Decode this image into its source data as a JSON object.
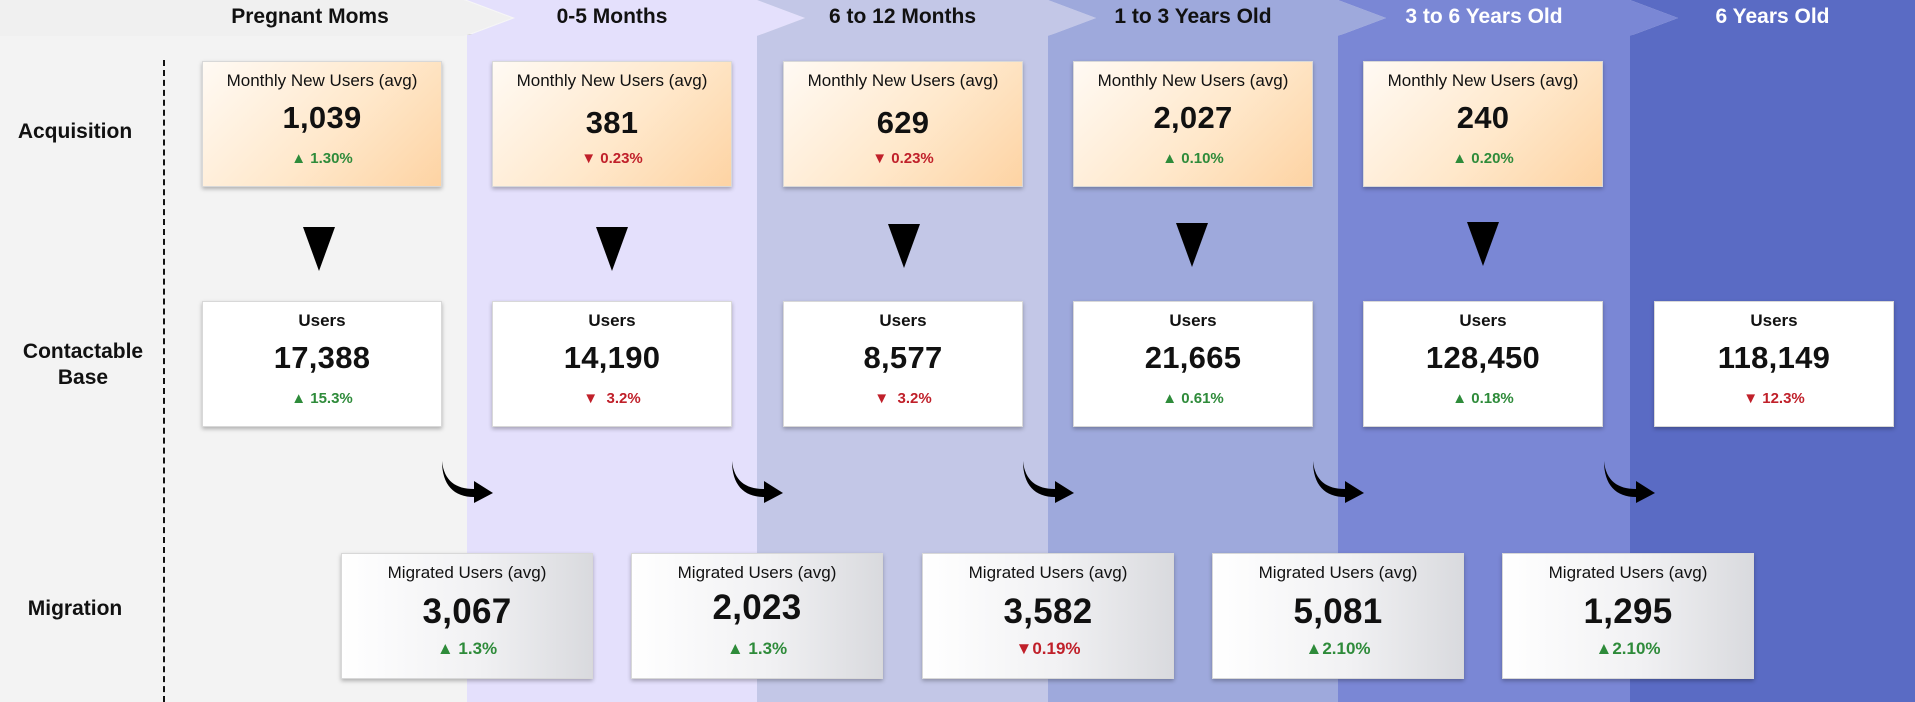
{
  "columns": [
    "Pregnant Moms",
    "0-5 Months",
    "6 to 12 Months",
    "1 to 3 Years Old",
    "3 to 6 Years Old",
    "6 Years Old"
  ],
  "column_colors": [
    "#f3f3f3",
    "#e4e0fc",
    "#c3c7e7",
    "#9ea9dc",
    "#7a87d5",
    "#5a6bc4"
  ],
  "rows": {
    "acquisition": "Acquisition",
    "base_line1": "Contactable",
    "base_line2": "Base",
    "migration": "Migration"
  },
  "acquisition": [
    {
      "label": "Monthly New Users (avg)",
      "value": "1,039",
      "change": "1.30%",
      "trend": "up"
    },
    {
      "label": "Monthly New Users (avg)",
      "value": "381",
      "change": "0.23%",
      "trend": "down"
    },
    {
      "label": "Monthly New Users (avg)",
      "value": "629",
      "change": "0.23%",
      "trend": "down"
    },
    {
      "label": "Monthly New Users (avg)",
      "value": "2,027",
      "change": "0.10%",
      "trend": "up"
    },
    {
      "label": "Monthly New Users (avg)",
      "value": "240",
      "change": "0.20%",
      "trend": "up"
    }
  ],
  "base": [
    {
      "label": "Users",
      "value": "17,388",
      "change": "15.3%",
      "trend": "up"
    },
    {
      "label": "Users",
      "value": "14,190",
      "change": "3.2%",
      "trend": "down"
    },
    {
      "label": "Users",
      "value": "8,577",
      "change": "3.2%",
      "trend": "down"
    },
    {
      "label": "Users",
      "value": "21,665",
      "change": "0.61%",
      "trend": "up"
    },
    {
      "label": "Users",
      "value": "128,450",
      "change": "0.18%",
      "trend": "up"
    },
    {
      "label": "Users",
      "value": "118,149",
      "change": "12.3%",
      "trend": "down"
    }
  ],
  "migration": [
    {
      "label": "Migrated Users (avg)",
      "value": "3,067",
      "change": "1.3%",
      "trend": "up"
    },
    {
      "label": "Migrated Users (avg)",
      "value": "2,023",
      "change": "1.3%",
      "trend": "up"
    },
    {
      "label": "Migrated Users (avg)",
      "value": "3,582",
      "change": "0.19%",
      "trend": "down"
    },
    {
      "label": "Migrated Users (avg)",
      "value": "5,081",
      "change": "2.10%",
      "trend": "up"
    },
    {
      "label": "Migrated Users (avg)",
      "value": "1,295",
      "change": "2.10%",
      "trend": "up"
    }
  ],
  "icons": {
    "up": "triangle-up-icon",
    "down": "triangle-down-icon",
    "flow": "down-arrow-icon",
    "migrate": "curved-arrow-icon"
  }
}
